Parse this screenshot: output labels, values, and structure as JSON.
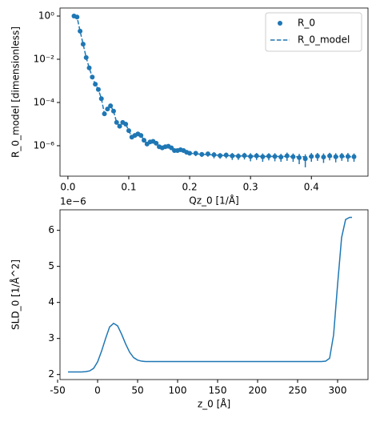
{
  "chart_data": [
    {
      "type": "scatter",
      "ylog": true,
      "ylabel": "R_0_model [dimensionless]",
      "xlabel": "Qz_0 [1/Å]",
      "legend": "upper right",
      "xlim": [
        -0.013,
        0.493
      ],
      "xticks": [
        {
          "value": 0,
          "label": "0.0"
        },
        {
          "value": 0.1,
          "label": "0.1"
        },
        {
          "value": 0.2,
          "label": "0.2"
        },
        {
          "value": 0.3,
          "label": "0.3"
        },
        {
          "value": 0.4,
          "label": "0.4"
        }
      ],
      "ylim": [
        3.9e-08,
        2.35
      ],
      "yticks": [
        {
          "value": 1,
          "label": "10⁰"
        },
        {
          "value": 0.01,
          "label": "10⁻²"
        },
        {
          "value": 0.0001,
          "label": "10⁻⁴"
        },
        {
          "value": 1e-06,
          "label": "10⁻⁶"
        }
      ],
      "x": [
        0.01,
        0.015,
        0.02,
        0.025,
        0.03,
        0.035,
        0.04,
        0.045,
        0.05,
        0.055,
        0.06,
        0.065,
        0.07,
        0.075,
        0.08,
        0.085,
        0.09,
        0.095,
        0.1,
        0.105,
        0.11,
        0.115,
        0.12,
        0.125,
        0.13,
        0.135,
        0.14,
        0.145,
        0.15,
        0.155,
        0.16,
        0.165,
        0.17,
        0.175,
        0.18,
        0.185,
        0.19,
        0.195,
        0.2,
        0.21,
        0.22,
        0.23,
        0.24,
        0.25,
        0.26,
        0.27,
        0.28,
        0.29,
        0.3,
        0.31,
        0.32,
        0.33,
        0.34,
        0.35,
        0.36,
        0.37,
        0.38,
        0.39,
        0.4,
        0.41,
        0.42,
        0.43,
        0.44,
        0.45,
        0.46,
        0.47
      ],
      "series": [
        {
          "name": "R_0",
          "color": "#1f77b4",
          "style": "points",
          "values": [
            1.0,
            0.9,
            0.2,
            0.05,
            0.012,
            0.004,
            0.0015,
            0.0007,
            0.0004,
            0.00015,
            3e-05,
            5e-05,
            7e-05,
            4e-05,
            1.2e-05,
            8e-06,
            1.2e-05,
            1e-05,
            5e-06,
            2.5e-06,
            3e-06,
            3.5e-06,
            3e-06,
            1.8e-06,
            1.2e-06,
            1.5e-06,
            1.6e-06,
            1.3e-06,
            9e-07,
            8e-07,
            9e-07,
            9.5e-07,
            8e-07,
            6e-07,
            6e-07,
            6.5e-07,
            6e-07,
            5e-07,
            4.5e-07,
            4.5e-07,
            4e-07,
            4.2e-07,
            3.8e-07,
            3.5e-07,
            3.7e-07,
            3.4e-07,
            3.3e-07,
            3.5e-07,
            3.2e-07,
            3.4e-07,
            3.1e-07,
            3.3e-07,
            3.2e-07,
            3e-07,
            3.4e-07,
            3.1e-07,
            2.8e-07,
            2.5e-07,
            3.2e-07,
            3.3e-07,
            3e-07,
            3.4e-07,
            3.1e-07,
            3.3e-07,
            3.2e-07,
            3.1e-07
          ],
          "errors": [
            null,
            null,
            null,
            null,
            null,
            null,
            null,
            null,
            null,
            null,
            null,
            null,
            null,
            null,
            null,
            null,
            null,
            null,
            null,
            null,
            null,
            null,
            null,
            null,
            null,
            null,
            null,
            null,
            null,
            null,
            null,
            null,
            null,
            null,
            null,
            null,
            null,
            null,
            null,
            1.2e-07,
            1e-07,
            1.1e-07,
            1.2e-07,
            1e-07,
            1.1e-07,
            1.2e-07,
            1.1e-07,
            1.2e-07,
            1.3e-07,
            1.2e-07,
            1.3e-07,
            1.2e-07,
            1.3e-07,
            1.2e-07,
            1.4e-07,
            1.3e-07,
            1.4e-07,
            1.5e-07,
            1.4e-07,
            1.3e-07,
            1.4e-07,
            1.3e-07,
            1.4e-07,
            1.3e-07,
            1.4e-07,
            1.3e-07
          ]
        },
        {
          "name": "R_0_model",
          "color": "#1f77b4",
          "style": "dashed",
          "values": [
            1.0,
            0.9,
            0.2,
            0.05,
            0.012,
            0.004,
            0.0015,
            0.0007,
            0.0004,
            0.00015,
            3e-05,
            5e-05,
            7e-05,
            4e-05,
            1.2e-05,
            8e-06,
            1.2e-05,
            1e-05,
            5e-06,
            2.5e-06,
            3e-06,
            3.5e-06,
            3e-06,
            1.8e-06,
            1.2e-06,
            1.5e-06,
            1.6e-06,
            1.3e-06,
            9e-07,
            8e-07,
            9e-07,
            9.5e-07,
            8e-07,
            6e-07,
            6e-07,
            6.5e-07,
            6e-07,
            5e-07,
            4.5e-07,
            4.2e-07,
            4e-07,
            3.9e-07,
            3.7e-07,
            3.6e-07,
            3.5e-07,
            3.4e-07,
            3.4e-07,
            3.3e-07,
            3.3e-07,
            3.3e-07,
            3.2e-07,
            3.2e-07,
            3.2e-07,
            3.2e-07,
            3.2e-07,
            3.1e-07,
            3.1e-07,
            3.1e-07,
            3.1e-07,
            3.1e-07,
            3.1e-07,
            3.1e-07,
            3.1e-07,
            3.1e-07,
            3.1e-07,
            3.1e-07
          ]
        }
      ]
    },
    {
      "type": "line",
      "ylabel": "SLD_0 [1/Å^2]",
      "xlabel": "z_0 [Å]",
      "y_offset_label": "1e−6",
      "xlim": [
        -47,
        338
      ],
      "xticks": [
        -50,
        0,
        50,
        100,
        150,
        200,
        250,
        300
      ],
      "ylim": [
        1.86,
        6.57
      ],
      "yticks": [
        2,
        3,
        4,
        5,
        6
      ],
      "x": [
        -37,
        -35,
        -30,
        -25,
        -20,
        -15,
        -10,
        -5,
        0,
        5,
        10,
        15,
        20,
        25,
        30,
        35,
        40,
        45,
        50,
        55,
        60,
        65,
        70,
        75,
        80,
        85,
        90,
        95,
        100,
        105,
        110,
        115,
        120,
        125,
        130,
        135,
        140,
        145,
        150,
        155,
        160,
        165,
        170,
        175,
        180,
        185,
        190,
        195,
        200,
        205,
        210,
        215,
        220,
        225,
        230,
        235,
        240,
        245,
        250,
        255,
        260,
        265,
        270,
        275,
        280,
        285,
        290,
        295,
        300,
        305,
        310,
        315,
        318
      ],
      "series": [
        {
          "name": "SLD_0",
          "color": "#1f77b4",
          "values": [
            2.07,
            2.07,
            2.07,
            2.07,
            2.07,
            2.08,
            2.1,
            2.17,
            2.35,
            2.65,
            3.0,
            3.32,
            3.42,
            3.35,
            3.12,
            2.85,
            2.62,
            2.47,
            2.4,
            2.37,
            2.36,
            2.36,
            2.36,
            2.36,
            2.36,
            2.36,
            2.36,
            2.36,
            2.36,
            2.36,
            2.36,
            2.36,
            2.36,
            2.36,
            2.36,
            2.36,
            2.36,
            2.36,
            2.36,
            2.36,
            2.36,
            2.36,
            2.36,
            2.36,
            2.36,
            2.36,
            2.36,
            2.36,
            2.36,
            2.36,
            2.36,
            2.36,
            2.36,
            2.36,
            2.36,
            2.36,
            2.36,
            2.36,
            2.36,
            2.36,
            2.36,
            2.36,
            2.36,
            2.36,
            2.36,
            2.37,
            2.45,
            3.1,
            4.5,
            5.8,
            6.3,
            6.36,
            6.36
          ]
        }
      ]
    }
  ]
}
